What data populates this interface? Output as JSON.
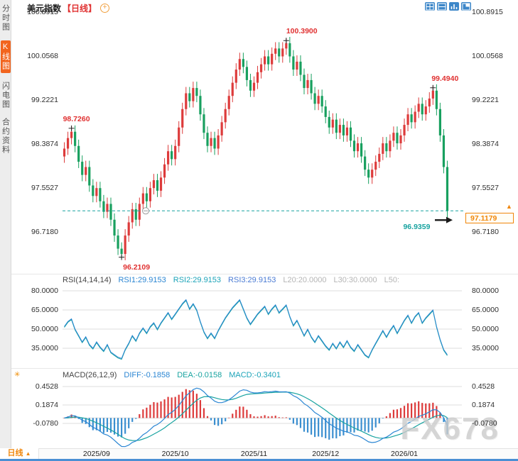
{
  "colors": {
    "up": "#dd3b3b",
    "down": "#18a05f",
    "blue": "#2b86d3",
    "teal": "#18a3a0",
    "orange": "#f0860b",
    "red_label": "#e03131",
    "accent_bar": "#4a8fd4"
  },
  "sidebar": {
    "items": [
      {
        "label": "分时图",
        "active": false
      },
      {
        "label": "K线图",
        "active": true
      },
      {
        "label": "闪电图",
        "active": false
      },
      {
        "label": "合约资料",
        "active": false
      }
    ]
  },
  "header": {
    "symbol": "美元指数",
    "period_tag": "【日线】"
  },
  "ui": {
    "add_glyph": "+",
    "settings_glyph": "✳",
    "nudge_up_glyph": "▲",
    "tab_arrow": "▲"
  },
  "bottom": {
    "tab_label": "日线"
  },
  "watermark": {
    "text": "FX678"
  },
  "chart_data": {
    "type": "candlestick",
    "symbol": "美元指数",
    "period": "日线",
    "y_axis": {
      "tick_labels": [
        "100.8915",
        "100.0568",
        "99.2221",
        "98.3874",
        "97.5527",
        "96.7180"
      ],
      "range": [
        96.718,
        100.8915
      ]
    },
    "x_axis": {
      "tick_labels": [
        "2025/09",
        "2025/10",
        "2025/11",
        "2025/12",
        "2026/01"
      ],
      "tick_indices": [
        9,
        31,
        53,
        73,
        95
      ]
    },
    "last_price": {
      "label": "97.1179",
      "value": 97.1179
    },
    "markers": [
      {
        "label": "98.7260",
        "index": 2,
        "price": 98.726,
        "color": "red",
        "placement": "above"
      },
      {
        "label": "100.3900",
        "index": 62,
        "price": 100.39,
        "color": "red",
        "placement": "above"
      },
      {
        "label": "99.4940",
        "index": 103,
        "price": 99.494,
        "color": "red",
        "placement": "above"
      },
      {
        "label": "96.2109",
        "index": 16,
        "price": 96.2109,
        "color": "red",
        "placement": "below"
      },
      {
        "label": "96.9359",
        "index": 107,
        "price": 96.9359,
        "color": "teal",
        "placement": "left"
      }
    ],
    "candles": [
      [
        98.15,
        98.42,
        98.03,
        98.3
      ],
      [
        98.3,
        98.62,
        98.18,
        98.5
      ],
      [
        98.5,
        98.726,
        98.38,
        98.62
      ],
      [
        98.62,
        98.74,
        98.23,
        98.35
      ],
      [
        98.35,
        98.47,
        97.93,
        98.05
      ],
      [
        98.05,
        98.17,
        97.68,
        97.8
      ],
      [
        97.8,
        98.07,
        97.68,
        97.95
      ],
      [
        97.95,
        98.07,
        97.48,
        97.6
      ],
      [
        97.6,
        97.72,
        97.28,
        97.4
      ],
      [
        97.4,
        97.67,
        97.28,
        97.55
      ],
      [
        97.55,
        97.67,
        97.18,
        97.3
      ],
      [
        97.3,
        97.42,
        96.98,
        97.1
      ],
      [
        97.1,
        97.37,
        96.98,
        97.25
      ],
      [
        97.25,
        97.37,
        96.83,
        96.95
      ],
      [
        96.95,
        97.07,
        96.53,
        96.65
      ],
      [
        96.65,
        96.77,
        96.28,
        96.4
      ],
      [
        96.4,
        96.52,
        96.2109,
        96.3
      ],
      [
        96.3,
        96.77,
        96.18,
        96.65
      ],
      [
        96.65,
        97.02,
        96.53,
        96.9
      ],
      [
        96.9,
        97.27,
        96.78,
        97.15
      ],
      [
        97.15,
        97.27,
        96.83,
        96.95
      ],
      [
        96.95,
        97.37,
        96.83,
        97.25
      ],
      [
        97.25,
        97.57,
        97.13,
        97.45
      ],
      [
        97.45,
        97.57,
        97.18,
        97.3
      ],
      [
        97.3,
        97.67,
        97.18,
        97.55
      ],
      [
        97.55,
        97.82,
        97.43,
        97.7
      ],
      [
        97.7,
        97.82,
        97.38,
        97.5
      ],
      [
        97.5,
        97.87,
        97.38,
        97.75
      ],
      [
        97.75,
        98.12,
        97.63,
        98.0
      ],
      [
        98.0,
        98.37,
        97.88,
        98.25
      ],
      [
        98.25,
        98.37,
        97.98,
        98.1
      ],
      [
        98.1,
        98.47,
        97.98,
        98.35
      ],
      [
        98.35,
        98.82,
        98.23,
        98.7
      ],
      [
        98.7,
        99.17,
        98.58,
        99.05
      ],
      [
        99.05,
        99.47,
        98.93,
        99.35
      ],
      [
        99.35,
        99.47,
        99.08,
        99.2
      ],
      [
        99.2,
        99.57,
        99.08,
        99.45
      ],
      [
        99.45,
        99.57,
        99.18,
        99.3
      ],
      [
        99.3,
        99.42,
        98.83,
        98.95
      ],
      [
        98.95,
        99.07,
        98.48,
        98.6
      ],
      [
        98.6,
        98.72,
        98.23,
        98.35
      ],
      [
        98.35,
        98.62,
        98.23,
        98.5
      ],
      [
        98.5,
        98.62,
        98.18,
        98.3
      ],
      [
        98.3,
        98.67,
        98.18,
        98.55
      ],
      [
        98.55,
        98.92,
        98.43,
        98.8
      ],
      [
        98.8,
        99.17,
        98.68,
        99.05
      ],
      [
        99.05,
        99.42,
        98.93,
        99.3
      ],
      [
        99.3,
        99.67,
        99.18,
        99.55
      ],
      [
        99.55,
        99.92,
        99.43,
        99.8
      ],
      [
        99.8,
        100.12,
        99.68,
        100.0
      ],
      [
        100.0,
        100.12,
        99.73,
        99.85
      ],
      [
        99.85,
        99.97,
        99.48,
        99.6
      ],
      [
        99.6,
        99.72,
        99.28,
        99.4
      ],
      [
        99.4,
        99.67,
        99.28,
        99.55
      ],
      [
        99.55,
        99.87,
        99.43,
        99.75
      ],
      [
        99.75,
        100.02,
        99.63,
        99.9
      ],
      [
        99.9,
        100.17,
        99.78,
        100.05
      ],
      [
        100.05,
        100.17,
        99.78,
        99.9
      ],
      [
        99.9,
        100.22,
        99.78,
        100.1
      ],
      [
        100.1,
        100.32,
        99.98,
        100.2
      ],
      [
        100.2,
        100.32,
        99.93,
        100.05
      ],
      [
        100.05,
        100.32,
        99.93,
        100.2
      ],
      [
        100.2,
        100.39,
        100.08,
        100.3
      ],
      [
        100.3,
        100.42,
        99.93,
        100.05
      ],
      [
        100.05,
        100.17,
        99.68,
        99.8
      ],
      [
        99.8,
        100.07,
        99.68,
        99.95
      ],
      [
        99.95,
        100.07,
        99.58,
        99.7
      ],
      [
        99.7,
        99.82,
        99.33,
        99.45
      ],
      [
        99.45,
        99.72,
        99.33,
        99.6
      ],
      [
        99.6,
        99.72,
        99.23,
        99.35
      ],
      [
        99.35,
        99.47,
        99.03,
        99.15
      ],
      [
        99.15,
        99.42,
        99.03,
        99.3
      ],
      [
        99.3,
        99.42,
        98.98,
        99.1
      ],
      [
        99.1,
        99.22,
        98.78,
        98.9
      ],
      [
        98.9,
        99.02,
        98.58,
        98.7
      ],
      [
        98.7,
        98.97,
        98.58,
        98.85
      ],
      [
        98.85,
        98.97,
        98.48,
        98.6
      ],
      [
        98.6,
        98.87,
        98.48,
        98.75
      ],
      [
        98.75,
        98.87,
        98.43,
        98.55
      ],
      [
        98.55,
        98.82,
        98.43,
        98.7
      ],
      [
        98.7,
        98.82,
        98.33,
        98.45
      ],
      [
        98.45,
        98.57,
        98.13,
        98.25
      ],
      [
        98.25,
        98.52,
        98.13,
        98.4
      ],
      [
        98.4,
        98.52,
        98.03,
        98.15
      ],
      [
        98.15,
        98.27,
        97.78,
        97.9
      ],
      [
        97.9,
        98.02,
        97.63,
        97.75
      ],
      [
        97.75,
        98.02,
        97.63,
        97.9
      ],
      [
        97.9,
        98.17,
        97.78,
        98.05
      ],
      [
        98.05,
        98.32,
        97.93,
        98.2
      ],
      [
        98.2,
        98.52,
        98.08,
        98.4
      ],
      [
        98.4,
        98.52,
        98.13,
        98.25
      ],
      [
        98.25,
        98.57,
        98.13,
        98.45
      ],
      [
        98.45,
        98.72,
        98.33,
        98.6
      ],
      [
        98.6,
        98.72,
        98.28,
        98.4
      ],
      [
        98.4,
        98.67,
        98.28,
        98.55
      ],
      [
        98.55,
        98.87,
        98.43,
        98.75
      ],
      [
        98.75,
        99.07,
        98.63,
        98.95
      ],
      [
        98.95,
        99.07,
        98.68,
        98.8
      ],
      [
        98.8,
        99.12,
        98.68,
        99.0
      ],
      [
        99.0,
        99.27,
        98.88,
        99.15
      ],
      [
        99.15,
        99.27,
        98.83,
        98.95
      ],
      [
        98.95,
        99.22,
        98.83,
        99.1
      ],
      [
        99.1,
        99.37,
        98.98,
        99.25
      ],
      [
        99.25,
        99.494,
        99.13,
        99.4
      ],
      [
        99.4,
        99.52,
        98.93,
        99.05
      ],
      [
        99.05,
        99.17,
        98.43,
        98.55
      ],
      [
        98.55,
        98.67,
        97.83,
        97.95
      ],
      [
        97.95,
        98.07,
        96.9359,
        97.1179
      ]
    ],
    "rsi": {
      "header": {
        "params": "RSI(14,14,14)",
        "rsi1": "RSI1:29.9153",
        "rsi2": "RSI2:29.9153",
        "rsi3": "RSI3:29.9153",
        "l20": "L20:20.0000",
        "l30": "L30:30.0000",
        "l50": "L50:"
      },
      "y_ticks": [
        "80.0000",
        "65.0000",
        "50.0000",
        "35.0000"
      ],
      "values": [
        52,
        56,
        58,
        50,
        45,
        40,
        44,
        38,
        35,
        40,
        36,
        33,
        38,
        32,
        30,
        28,
        27,
        34,
        39,
        45,
        41,
        47,
        51,
        47,
        52,
        55,
        50,
        55,
        59,
        63,
        58,
        62,
        66,
        70,
        73,
        66,
        70,
        65,
        56,
        48,
        43,
        47,
        43,
        49,
        54,
        59,
        63,
        67,
        70,
        73,
        66,
        59,
        54,
        58,
        62,
        65,
        68,
        62,
        66,
        69,
        63,
        66,
        69,
        60,
        53,
        57,
        51,
        45,
        50,
        44,
        40,
        45,
        41,
        37,
        34,
        39,
        35,
        40,
        36,
        41,
        36,
        33,
        38,
        34,
        30,
        28,
        34,
        39,
        44,
        49,
        44,
        49,
        53,
        47,
        52,
        57,
        61,
        55,
        60,
        63,
        55,
        59,
        62,
        65,
        52,
        42,
        34,
        29.9153
      ]
    },
    "macd": {
      "header": {
        "params": "MACD(26,12,9)",
        "diff": "DIFF:-0.1858",
        "dea": "DEA:-0.0158",
        "macd": "MACD:-0.3401"
      },
      "y_ticks": [
        "0.4528",
        "0.1874",
        "-0.0780"
      ]
    }
  }
}
